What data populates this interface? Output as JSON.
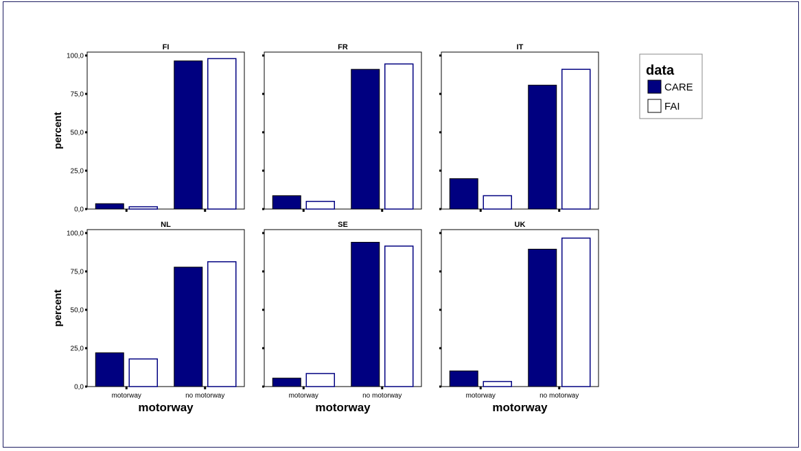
{
  "chart_data": {
    "type": "bar",
    "layout": "facet grid 2 rows x 3 columns",
    "categories": [
      "motorway",
      "no motorway"
    ],
    "xlabel": "motorway",
    "ylabel": "percent",
    "ylim": [
      0,
      100
    ],
    "yticks": [
      "0,0",
      "25,0",
      "50,0",
      "75,0",
      "100,0"
    ],
    "ytick_values": [
      0,
      25,
      50,
      75,
      100
    ],
    "legend": {
      "title": "data",
      "position": "right",
      "entries": [
        "CARE",
        "FAI"
      ]
    },
    "colors": {
      "CARE": "#000080",
      "FAI": "#ffffff",
      "FAI_border": "#000080"
    },
    "panels": [
      {
        "title": "FI",
        "series": [
          {
            "name": "CARE",
            "values": [
              3.5,
              96.5
            ]
          },
          {
            "name": "FAI",
            "values": [
              1.5,
              98.0
            ]
          }
        ]
      },
      {
        "title": "FR",
        "series": [
          {
            "name": "CARE",
            "values": [
              8.7,
              91.0
            ]
          },
          {
            "name": "FAI",
            "values": [
              5.0,
              94.5
            ]
          }
        ]
      },
      {
        "title": "IT",
        "series": [
          {
            "name": "CARE",
            "values": [
              19.8,
              80.7
            ]
          },
          {
            "name": "FAI",
            "values": [
              8.7,
              91.0
            ]
          }
        ]
      },
      {
        "title": "NL",
        "series": [
          {
            "name": "CARE",
            "values": [
              22.0,
              77.8
            ]
          },
          {
            "name": "FAI",
            "values": [
              18.0,
              81.3
            ]
          }
        ]
      },
      {
        "title": "SE",
        "series": [
          {
            "name": "CARE",
            "values": [
              5.5,
              94.0
            ]
          },
          {
            "name": "FAI",
            "values": [
              8.5,
              91.5
            ]
          }
        ]
      },
      {
        "title": "UK",
        "series": [
          {
            "name": "CARE",
            "values": [
              10.2,
              89.5
            ]
          },
          {
            "name": "FAI",
            "values": [
              3.3,
              96.7
            ]
          }
        ]
      }
    ]
  }
}
